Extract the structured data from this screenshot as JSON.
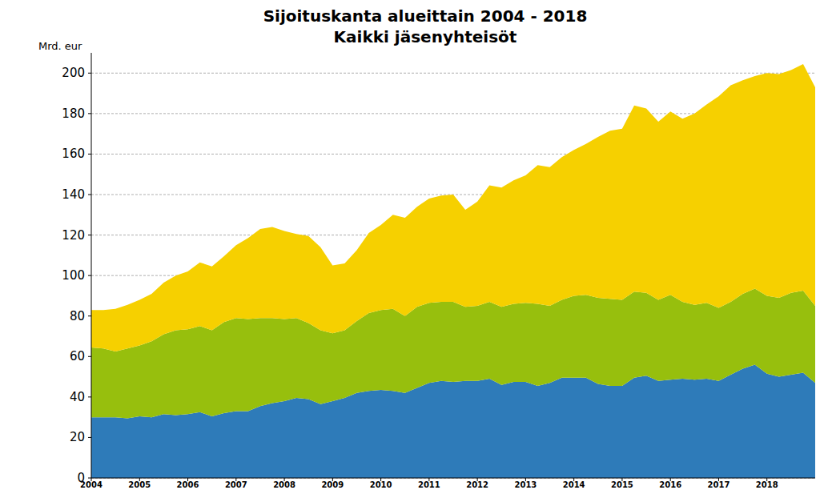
{
  "chart_data": {
    "type": "area",
    "title": "Sijoituskanta alueittain 2004 - 2018",
    "subtitle": "Kaikki jäsenyhteisöt",
    "y_label": "Mrd. eur",
    "stacked": true,
    "grid": true,
    "x": [
      2004,
      2004.25,
      2004.5,
      2004.75,
      2005,
      2005.25,
      2005.5,
      2005.75,
      2006,
      2006.25,
      2006.5,
      2006.75,
      2007,
      2007.25,
      2007.5,
      2007.75,
      2008,
      2008.25,
      2008.5,
      2008.75,
      2009,
      2009.25,
      2009.5,
      2009.75,
      2010,
      2010.25,
      2010.5,
      2010.75,
      2011,
      2011.25,
      2011.5,
      2011.75,
      2012,
      2012.25,
      2012.5,
      2012.75,
      2013,
      2013.25,
      2013.5,
      2013.75,
      2014,
      2014.25,
      2014.5,
      2014.75,
      2015,
      2015.25,
      2015.5,
      2015.75,
      2016,
      2016.25,
      2016.5,
      2016.75,
      2017,
      2017.25,
      2017.5,
      2017.75,
      2018,
      2018.25,
      2018.5,
      2018.75,
      2019
    ],
    "xlim": [
      2004,
      2019
    ],
    "xticks": [
      2004,
      2005,
      2006,
      2007,
      2008,
      2009,
      2010,
      2011,
      2012,
      2013,
      2014,
      2015,
      2016,
      2017,
      2018
    ],
    "ylim": [
      0,
      210
    ],
    "yticks": [
      0,
      20,
      40,
      60,
      80,
      100,
      120,
      140,
      160,
      180,
      200
    ],
    "series": [
      {
        "color": "#2e7bb9",
        "values": [
          30,
          30,
          30,
          29.5,
          30.5,
          30,
          31.5,
          31,
          31.5,
          32.5,
          30.5,
          32,
          33,
          33,
          35.5,
          37,
          38,
          39.5,
          39,
          36.5,
          38,
          39.5,
          42,
          43,
          43.5,
          43,
          42,
          44.5,
          47,
          48,
          47.5,
          48,
          48,
          49,
          46,
          47.5,
          47.5,
          45.5,
          47,
          49.5,
          49.5,
          49.5,
          46.5,
          45.5,
          45.5,
          49.5,
          50.5,
          48,
          48.5,
          49,
          48.5,
          49,
          48,
          51,
          54,
          56,
          51.5,
          50,
          51,
          52,
          47
        ]
      },
      {
        "color": "#97bf0d",
        "values": [
          34.5,
          34,
          32.5,
          34.5,
          35,
          37.5,
          39.5,
          42,
          42,
          42.5,
          42.5,
          45,
          46,
          45.5,
          43.5,
          42,
          40.5,
          39.5,
          37.5,
          36.5,
          33.5,
          33.5,
          35.5,
          38.5,
          39.5,
          40.5,
          38,
          40,
          39.5,
          39,
          39.5,
          36.5,
          37,
          38,
          38.5,
          38.5,
          39,
          40.5,
          38,
          38.5,
          40.5,
          41,
          42.5,
          43,
          42.5,
          42.5,
          41,
          40,
          42,
          38,
          37,
          37.5,
          36,
          36,
          37,
          37.5,
          38.5,
          39,
          40.5,
          40.5,
          38
        ]
      },
      {
        "color": "#f6d000",
        "values": [
          18.5,
          19,
          21,
          21.5,
          22.5,
          23.5,
          25.5,
          27,
          28.5,
          31.5,
          31.5,
          32.5,
          36,
          40,
          44,
          45,
          43.5,
          41.5,
          43,
          41,
          33.5,
          33,
          35,
          39.5,
          42,
          46.5,
          48.5,
          49.5,
          51.5,
          52.5,
          53,
          48,
          51.5,
          57.5,
          59,
          61,
          63,
          68.5,
          68.5,
          70.5,
          72,
          74.5,
          79.5,
          83,
          84.5,
          92,
          91,
          88,
          90.5,
          90.5,
          94.5,
          98,
          104.5,
          107,
          105.5,
          105,
          110,
          110.5,
          110,
          112,
          108
        ]
      }
    ]
  }
}
